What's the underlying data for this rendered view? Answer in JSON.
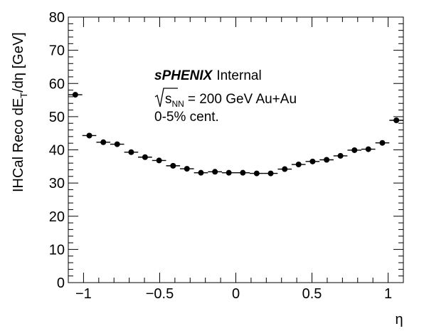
{
  "chart_data": {
    "type": "scatter",
    "xlabel": "η",
    "ylabel_parts": {
      "a": "IHCal Reco dE",
      "sub": "T",
      "b": "/dη [GeV]"
    },
    "xlim": [
      -1.1,
      1.1
    ],
    "ylim": [
      0,
      80
    ],
    "x_ticks": [
      -1,
      -0.5,
      0,
      0.5,
      1
    ],
    "x_tick_labels": [
      "−1",
      "−0.5",
      "0",
      "0.5",
      "1"
    ],
    "y_ticks": [
      0,
      10,
      20,
      30,
      40,
      50,
      60,
      70,
      80
    ],
    "y_tick_labels": [
      "0",
      "10",
      "20",
      "30",
      "40",
      "50",
      "60",
      "70",
      "80"
    ],
    "bin_width": 0.0917,
    "points": [
      {
        "x": -1.054,
        "y": 56.6
      },
      {
        "x": -0.962,
        "y": 44.3
      },
      {
        "x": -0.87,
        "y": 42.3
      },
      {
        "x": -0.779,
        "y": 41.7
      },
      {
        "x": -0.687,
        "y": 39.3
      },
      {
        "x": -0.596,
        "y": 37.8
      },
      {
        "x": -0.504,
        "y": 36.8
      },
      {
        "x": -0.412,
        "y": 35.2
      },
      {
        "x": -0.321,
        "y": 34.3
      },
      {
        "x": -0.229,
        "y": 33.1
      },
      {
        "x": -0.137,
        "y": 33.4
      },
      {
        "x": -0.046,
        "y": 33.1
      },
      {
        "x": 0.046,
        "y": 33.1
      },
      {
        "x": 0.137,
        "y": 32.9
      },
      {
        "x": 0.229,
        "y": 32.9
      },
      {
        "x": 0.321,
        "y": 34.2
      },
      {
        "x": 0.412,
        "y": 35.6
      },
      {
        "x": 0.504,
        "y": 36.5
      },
      {
        "x": 0.596,
        "y": 37.0
      },
      {
        "x": 0.687,
        "y": 38.2
      },
      {
        "x": 0.779,
        "y": 39.9
      },
      {
        "x": 0.87,
        "y": 40.2
      },
      {
        "x": 0.962,
        "y": 42.1
      },
      {
        "x": 1.054,
        "y": 48.9
      }
    ],
    "grid": false,
    "legend": "none",
    "marker_color": "#000000"
  },
  "annotation": {
    "brand": "sPHENIX",
    "status": "Internal",
    "sqrt_s_var": "s",
    "sqrt_s_sub": "NN",
    "energy": "= 200 GeV Au+Au",
    "centrality": "0-5% cent."
  }
}
